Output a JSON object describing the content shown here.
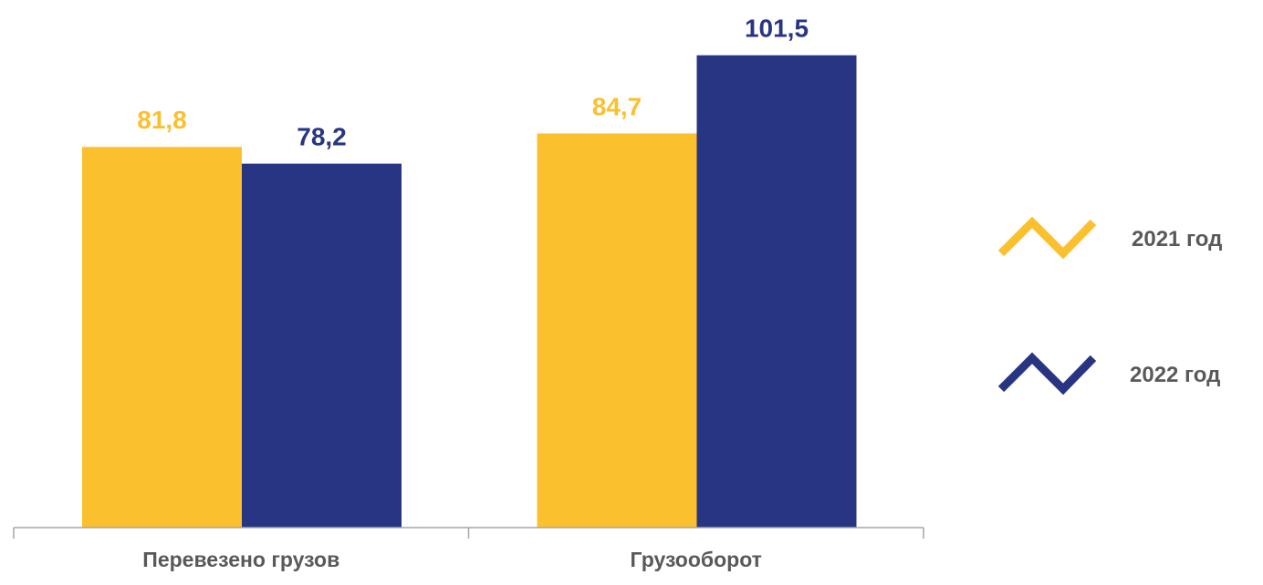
{
  "chart_data": {
    "type": "bar",
    "categories": [
      "Перевезено грузов",
      "Грузооборот"
    ],
    "series": [
      {
        "name": "2021 год",
        "values": [
          81.8,
          84.7
        ],
        "labels": [
          "81,8",
          "84,7"
        ],
        "color": "#FBC02D"
      },
      {
        "name": "2022 год",
        "values": [
          78.2,
          101.5
        ],
        "labels": [
          "78,2",
          "101,5"
        ],
        "color": "#283583"
      }
    ],
    "title": "",
    "xlabel": "",
    "ylabel": "",
    "ylim": [
      0,
      110
    ],
    "grid": false,
    "legend": "right",
    "colors": {
      "axis": "#A6A6A6",
      "category_label": "#595959",
      "legend_label": "#595959"
    }
  }
}
